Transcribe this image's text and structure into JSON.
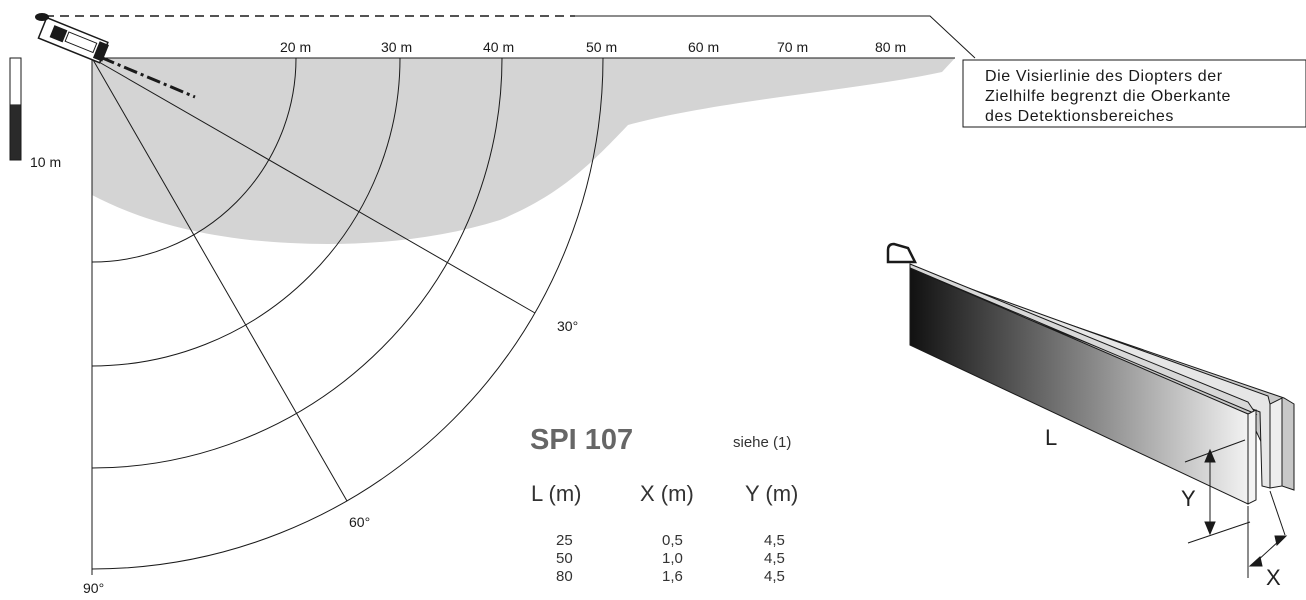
{
  "distance_labels": [
    "20 m",
    "30 m",
    "40 m",
    "50 m",
    "60 m",
    "70 m",
    "80 m"
  ],
  "scale_label": "10 m",
  "angle_labels": [
    "30°",
    "60°",
    "90°"
  ],
  "note_lines": [
    "Die Visierlinie des Diopters der",
    "Zielhilfe begrenzt die Oberkante",
    "des Detektionsbereiches"
  ],
  "model": {
    "title": "SPI 107",
    "reference": "siehe (1)"
  },
  "table": {
    "headers": [
      "L (m)",
      "X (m)",
      "Y (m)"
    ],
    "rows": [
      [
        "25",
        "0,5",
        "4,5"
      ],
      [
        "50",
        "1,0",
        "4,5"
      ],
      [
        "80",
        "1,6",
        "4,5"
      ]
    ]
  },
  "beam_labels": {
    "length": "L",
    "height": "Y",
    "width": "X"
  },
  "colors": {
    "zone_fill": "#d4d4d4",
    "line": "#1a1a1a"
  }
}
